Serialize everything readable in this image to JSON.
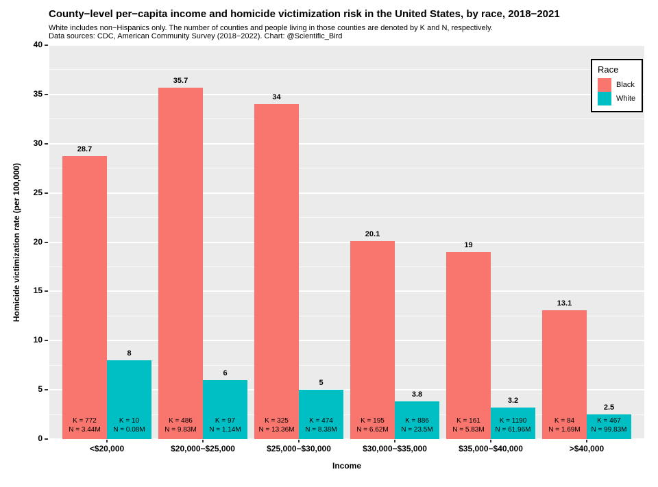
{
  "header": {
    "title": "County−level per−capita income and homicide victimization risk in the United States, by race, 2018−2021",
    "subtitle_line1": "White includes non−Hispanics only. The number of counties and people living in those counties are denoted by K and N, respectively.",
    "subtitle_line2": "Data sources: CDC, American Community Survey (2018−2022). Chart: @Scientific_Bird"
  },
  "axes": {
    "x_title": "Income",
    "y_title": "Homicide victimization rate (per 100,000)"
  },
  "legend": {
    "title": "Race",
    "entries": [
      {
        "label": "Black",
        "color": "#F8766D"
      },
      {
        "label": "White",
        "color": "#00BFC4"
      }
    ]
  },
  "colors": {
    "panel_background": "#EBEBEB",
    "gridline": "#FFFFFF",
    "black_series": "#F8766D",
    "white_series": "#00BFC4",
    "text": "#000000"
  },
  "chart_data": {
    "type": "bar",
    "title": "County−level per−capita income and homicide victimization risk in the United States, by race, 2018−2021",
    "subtitle": "White includes non−Hispanics only. The number of counties and people living in those counties are denoted by K and N, respectively.",
    "caption": "Data sources: CDC, American Community Survey (2018−2022). Chart: @Scientific_Bird",
    "xlabel": "Income",
    "ylabel": "Homicide victimization rate (per 100,000)",
    "ylim": [
      0,
      40
    ],
    "y_major_ticks": [
      0,
      5,
      10,
      15,
      20,
      25,
      30,
      35,
      40
    ],
    "y_minor_ticks": [
      2.5,
      7.5,
      12.5,
      17.5,
      22.5,
      27.5,
      32.5,
      37.5
    ],
    "grid": "major and minor horizontal white gridlines on gray panel",
    "legend_position": "top-right inside panel",
    "categories": [
      "<$20,000",
      "$20,000−$25,000",
      "$25,000−$30,000",
      "$30,000−$35,000",
      "$35,000−$40,000",
      ">$40,000"
    ],
    "series": [
      {
        "name": "Black",
        "color": "#F8766D",
        "values": [
          28.7,
          35.7,
          34,
          20.1,
          19,
          13.1
        ],
        "value_labels": [
          "28.7",
          "35.7",
          "34",
          "20.1",
          "19",
          "13.1"
        ],
        "counties": [
          "K = 772",
          "K = 486",
          "K = 325",
          "K = 195",
          "K = 161",
          "K = 84"
        ],
        "population": [
          "N = 3.44M",
          "N = 9.83M",
          "N = 13.36M",
          "N = 6.62M",
          "N = 5.83M",
          "N = 1.69M"
        ]
      },
      {
        "name": "White",
        "color": "#00BFC4",
        "values": [
          8,
          6,
          5,
          3.8,
          3.2,
          2.5
        ],
        "value_labels": [
          "8",
          "6",
          "5",
          "3.8",
          "3.2",
          "2.5"
        ],
        "counties": [
          "K = 10",
          "K = 97",
          "K = 474",
          "K = 886",
          "K = 1190",
          "K = 467"
        ],
        "population": [
          "N = 0.08M",
          "N = 1.14M",
          "N = 8.38M",
          "N = 23.5M",
          "N = 61.96M",
          "N = 99.83M"
        ]
      }
    ]
  }
}
